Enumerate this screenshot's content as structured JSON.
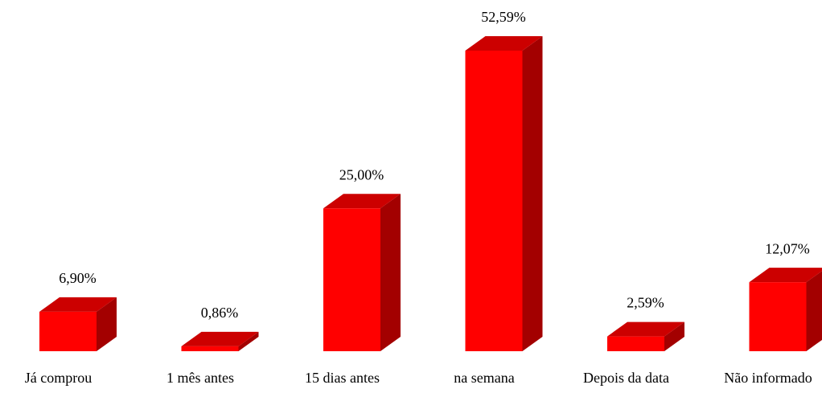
{
  "chart_data": {
    "type": "bar3d",
    "categories": [
      "Já comprou",
      "1 mês antes",
      "15 dias antes",
      "na semana",
      "Depois da data",
      "Não informado"
    ],
    "values": [
      6.9,
      0.86,
      25.0,
      52.59,
      2.59,
      12.07
    ],
    "value_labels": [
      "6,90%",
      "0,86%",
      "25,00%",
      "52,59%",
      "2,59%",
      "12,07%"
    ],
    "color": "#ff0000"
  }
}
